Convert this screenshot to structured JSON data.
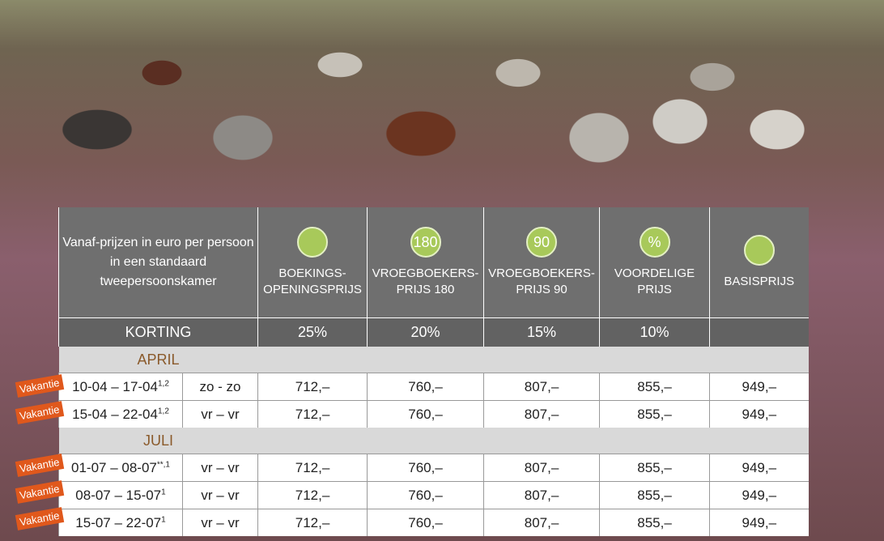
{
  "header": {
    "intro": "Vanaf-prijzen in euro per persoon in een standaard tweepersoonskamer",
    "columns": [
      {
        "label": [
          "BOEKINGS-",
          "OPENINGSPRIJS"
        ]
      },
      {
        "icon": "180",
        "label": [
          "VROEGBOEKERS-",
          "PRIJS 180"
        ]
      },
      {
        "icon": "90",
        "label": [
          "VROEGBOEKERS-",
          "PRIJS 90"
        ]
      },
      {
        "icon": "%",
        "label": [
          "VOORDELIGE",
          "PRIJS"
        ]
      },
      {
        "label": [
          "BASISPRIJS"
        ]
      }
    ]
  },
  "discount": {
    "label": "KORTING",
    "values": [
      "25%",
      "20%",
      "15%",
      "10%"
    ]
  },
  "sections": [
    {
      "month": "APRIL",
      "rows": [
        {
          "tag": "Vakantie",
          "dates": "10-04 – 17-04",
          "note": "1,2",
          "days": "zo - zo",
          "prices": [
            "712,–",
            "760,–",
            "807,–",
            "855,–",
            "949,–"
          ]
        },
        {
          "tag": "Vakantie",
          "dates": "15-04 – 22-04",
          "note": "1,2",
          "days": "vr – vr",
          "prices": [
            "712,–",
            "760,–",
            "807,–",
            "855,–",
            "949,–"
          ]
        }
      ]
    },
    {
      "month": "JULI",
      "rows": [
        {
          "tag": "Vakantie",
          "dates": "01-07 – 08-07",
          "note": "**,1",
          "days": "vr – vr",
          "prices": [
            "712,–",
            "760,–",
            "807,–",
            "855,–",
            "949,–"
          ]
        },
        {
          "tag": "Vakantie",
          "dates": "08-07 – 15-07",
          "note": "1",
          "days": "vr – vr",
          "prices": [
            "712,–",
            "760,–",
            "807,–",
            "855,–",
            "949,–"
          ]
        },
        {
          "tag": "Vakantie",
          "dates": "15-07 – 22-07",
          "note": "1",
          "days": "vr – vr",
          "prices": [
            "712,–",
            "760,–",
            "807,–",
            "855,–",
            "949,–"
          ]
        }
      ]
    }
  ]
}
